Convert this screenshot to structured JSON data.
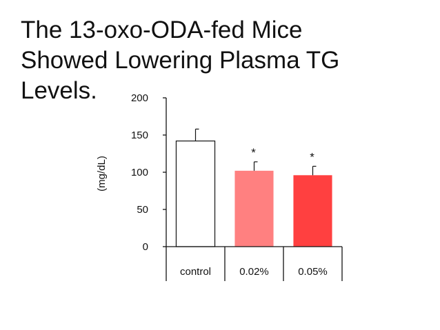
{
  "title_lines": [
    "The 13-oxo-ODA-fed Mice",
    "Showed Lowering Plasma TG",
    "Levels."
  ],
  "chart_data": {
    "type": "bar",
    "title": "The 13-oxo-ODA-fed Mice Showed Lowering Plasma TG Levels.",
    "xlabel": "",
    "ylabel": "(mg/dL)",
    "ylim": [
      0,
      200
    ],
    "yticks": [
      0,
      50,
      100,
      150,
      200
    ],
    "categories": [
      "control",
      "0.02%",
      "0.05%"
    ],
    "values": [
      142,
      102,
      96
    ],
    "error_upper": [
      16,
      12,
      12
    ],
    "significance": [
      "",
      "*",
      "*"
    ],
    "bar_colors": [
      "#ffffff",
      "#ff8080",
      "#ff4040"
    ],
    "grid": false,
    "legend": "none"
  }
}
